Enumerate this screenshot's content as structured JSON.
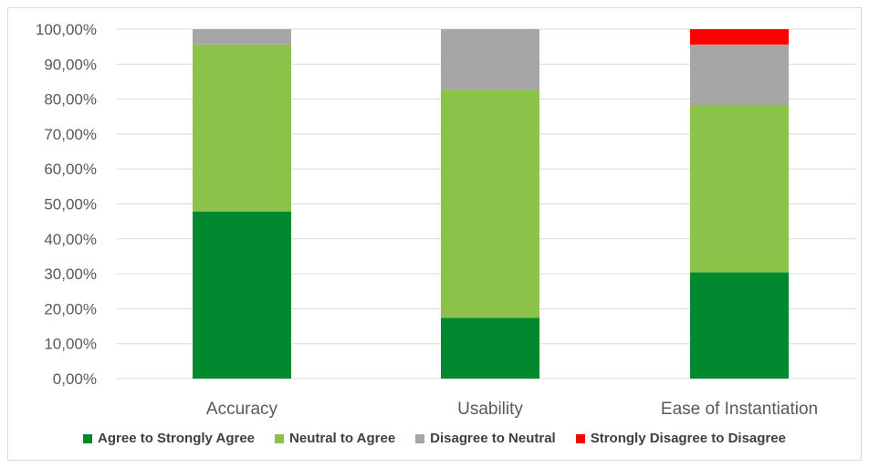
{
  "chart_data": {
    "type": "bar",
    "stacked": true,
    "categories": [
      "Accuracy",
      "Usability",
      "Ease of Instantiation"
    ],
    "series": [
      {
        "name": "Agree to Strongly Agree",
        "color": "#00892f",
        "values": [
          47.8,
          17.4,
          30.4
        ]
      },
      {
        "name": "Neutral to Agree",
        "color": "#8bc24a",
        "values": [
          47.8,
          65.2,
          47.8
        ]
      },
      {
        "name": "Disagree to Neutral",
        "color": "#a6a6a6",
        "values": [
          4.4,
          17.4,
          17.4
        ]
      },
      {
        "name": "Strongly Disagree to Disagree",
        "color": "#ff0000",
        "values": [
          0,
          0,
          4.4
        ]
      }
    ],
    "yticks": [
      "0,00%",
      "10,00%",
      "20,00%",
      "30,00%",
      "40,00%",
      "50,00%",
      "60,00%",
      "70,00%",
      "80,00%",
      "90,00%",
      "100,00%"
    ],
    "ylim": [
      0,
      100
    ],
    "grid": true,
    "legend_position": "bottom"
  }
}
